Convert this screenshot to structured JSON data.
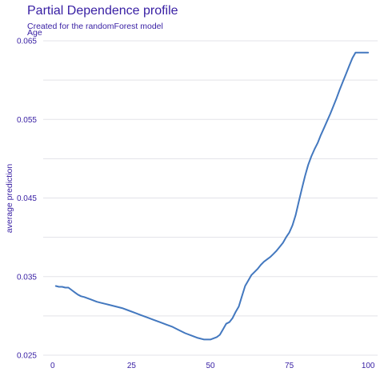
{
  "chart_data": {
    "type": "line",
    "title": "Partial Dependence profile",
    "subtitle": "Created for the randomForest model",
    "panel_label": "Age",
    "xlabel": "",
    "ylabel": "average prediction",
    "xlim": [
      -3,
      103
    ],
    "ylim": [
      0.025,
      0.065
    ],
    "x_ticks": [
      0,
      25,
      50,
      75,
      100
    ],
    "x_tick_labels": [
      "0",
      "25",
      "50",
      "75",
      "100"
    ],
    "y_ticks": [
      0.025,
      0.035,
      0.045,
      0.055,
      0.065
    ],
    "y_tick_labels": [
      "0.025",
      "0.035",
      "0.045",
      "0.055",
      "0.065"
    ],
    "grid": true,
    "series": [
      {
        "color": "#4378bf",
        "x": [
          1,
          2,
          3,
          4,
          5,
          6,
          7,
          8,
          9,
          10,
          12,
          14,
          16,
          18,
          20,
          22,
          24,
          26,
          28,
          30,
          32,
          34,
          36,
          38,
          40,
          42,
          44,
          46,
          48,
          50,
          52,
          53,
          54,
          55,
          56,
          57,
          58,
          59,
          60,
          61,
          62,
          63,
          64,
          65,
          66,
          67,
          68,
          69,
          70,
          71,
          72,
          73,
          74,
          75,
          76,
          77,
          78,
          79,
          80,
          81,
          82,
          83,
          84,
          85,
          86,
          87,
          88,
          89,
          90,
          91,
          92,
          93,
          94,
          95,
          96,
          98,
          100
        ],
        "y": [
          0.0338,
          0.0337,
          0.0337,
          0.0336,
          0.0336,
          0.0333,
          0.033,
          0.0327,
          0.0325,
          0.0324,
          0.0321,
          0.0318,
          0.0316,
          0.0314,
          0.0312,
          0.031,
          0.0307,
          0.0304,
          0.0301,
          0.0298,
          0.0295,
          0.0292,
          0.0289,
          0.0286,
          0.0282,
          0.0278,
          0.0275,
          0.0272,
          0.027,
          0.027,
          0.0273,
          0.0276,
          0.0283,
          0.029,
          0.0292,
          0.0297,
          0.0305,
          0.0312,
          0.0325,
          0.0338,
          0.0345,
          0.0352,
          0.0356,
          0.036,
          0.0365,
          0.0369,
          0.0372,
          0.0375,
          0.0379,
          0.0383,
          0.0388,
          0.0393,
          0.04,
          0.0406,
          0.0415,
          0.0428,
          0.0445,
          0.0462,
          0.0478,
          0.0492,
          0.0503,
          0.0512,
          0.052,
          0.053,
          0.0539,
          0.0548,
          0.0557,
          0.0567,
          0.0577,
          0.0588,
          0.0598,
          0.0608,
          0.0618,
          0.0628,
          0.0635,
          0.0635,
          0.0635
        ]
      }
    ]
  }
}
